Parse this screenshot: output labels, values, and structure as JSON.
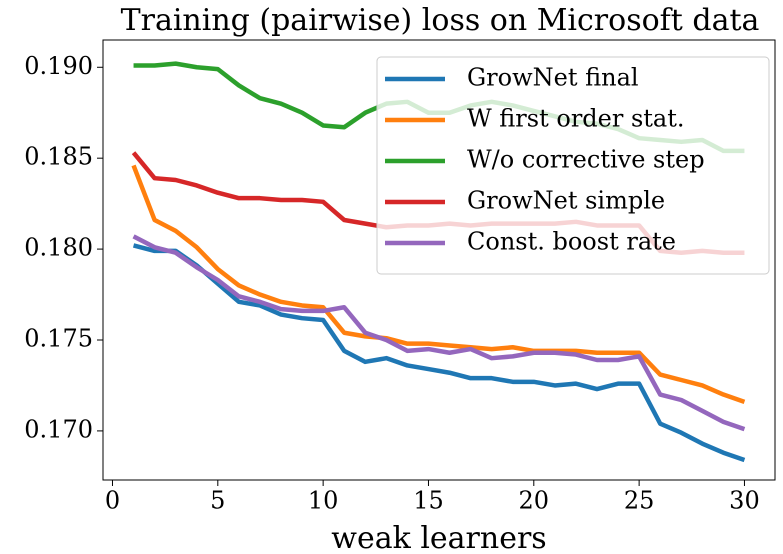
{
  "chart_data": {
    "type": "line",
    "title": "Training (pairwise) loss on Microsoft data",
    "xlabel": "weak learners",
    "x": [
      1,
      2,
      3,
      4,
      5,
      6,
      7,
      8,
      9,
      10,
      11,
      12,
      13,
      14,
      15,
      16,
      17,
      18,
      19,
      20,
      21,
      22,
      23,
      24,
      25,
      26,
      27,
      28,
      29,
      30
    ],
    "series": [
      {
        "name": "GrowNet final",
        "color": "#1f77b4",
        "values": [
          0.1802,
          0.1799,
          0.1799,
          0.1791,
          0.1781,
          0.1771,
          0.1769,
          0.1764,
          0.1762,
          0.1761,
          0.1744,
          0.1738,
          0.174,
          0.1736,
          0.1734,
          0.1732,
          0.1729,
          0.1729,
          0.1727,
          0.1727,
          0.1725,
          0.1726,
          0.1723,
          0.1726,
          0.1726,
          0.1704,
          0.1699,
          0.1693,
          0.1688,
          0.1684
        ]
      },
      {
        "name": "W first order stat.",
        "color": "#ff7f0e",
        "values": [
          0.1846,
          0.1816,
          0.181,
          0.1801,
          0.1789,
          0.178,
          0.1775,
          0.1771,
          0.1769,
          0.1768,
          0.1754,
          0.1752,
          0.1751,
          0.1748,
          0.1748,
          0.1747,
          0.1746,
          0.1745,
          0.1746,
          0.1744,
          0.1744,
          0.1744,
          0.1743,
          0.1743,
          0.1743,
          0.1731,
          0.1728,
          0.1725,
          0.172,
          0.1716
        ]
      },
      {
        "name": "W/o corrective step",
        "color": "#2ca02c",
        "values": [
          0.1901,
          0.1901,
          0.1902,
          0.19,
          0.1899,
          0.189,
          0.1883,
          0.188,
          0.1875,
          0.1868,
          0.1867,
          0.1875,
          0.188,
          0.1881,
          0.1875,
          0.1875,
          0.1879,
          0.1881,
          0.1879,
          0.1876,
          0.1873,
          0.187,
          0.1869,
          0.1866,
          0.1861,
          0.186,
          0.1859,
          0.186,
          0.1854,
          0.1854
        ]
      },
      {
        "name": "GrowNet simple",
        "color": "#d62728",
        "values": [
          0.1853,
          0.1839,
          0.1838,
          0.1835,
          0.1831,
          0.1828,
          0.1828,
          0.1827,
          0.1827,
          0.1826,
          0.1816,
          0.1814,
          0.1812,
          0.1813,
          0.1813,
          0.1814,
          0.1813,
          0.1814,
          0.1814,
          0.1814,
          0.1814,
          0.1815,
          0.1813,
          0.1813,
          0.1813,
          0.1799,
          0.1798,
          0.1799,
          0.1798,
          0.1798
        ]
      },
      {
        "name": "Const. boost rate",
        "color": "#9467bd",
        "values": [
          0.1807,
          0.1801,
          0.1798,
          0.179,
          0.1783,
          0.1774,
          0.1771,
          0.1767,
          0.1766,
          0.1766,
          0.1768,
          0.1754,
          0.175,
          0.1744,
          0.1745,
          0.1743,
          0.1745,
          0.174,
          0.1741,
          0.1743,
          0.1743,
          0.1742,
          0.1739,
          0.1739,
          0.1741,
          0.172,
          0.1717,
          0.1711,
          0.1705,
          0.1701
        ]
      }
    ],
    "xlim": [
      -0.45,
      31.45
    ],
    "ylim": [
      0.1673,
      0.1915
    ],
    "xticks": [
      0,
      5,
      10,
      15,
      20,
      25,
      30
    ],
    "yticks": [
      {
        "value": 0.17,
        "label": "0.170"
      },
      0.175,
      {
        "value": 0.18,
        "label": "0.180"
      },
      0.185,
      {
        "value": 0.19,
        "label": "0.190"
      }
    ],
    "legend": "upper right"
  }
}
